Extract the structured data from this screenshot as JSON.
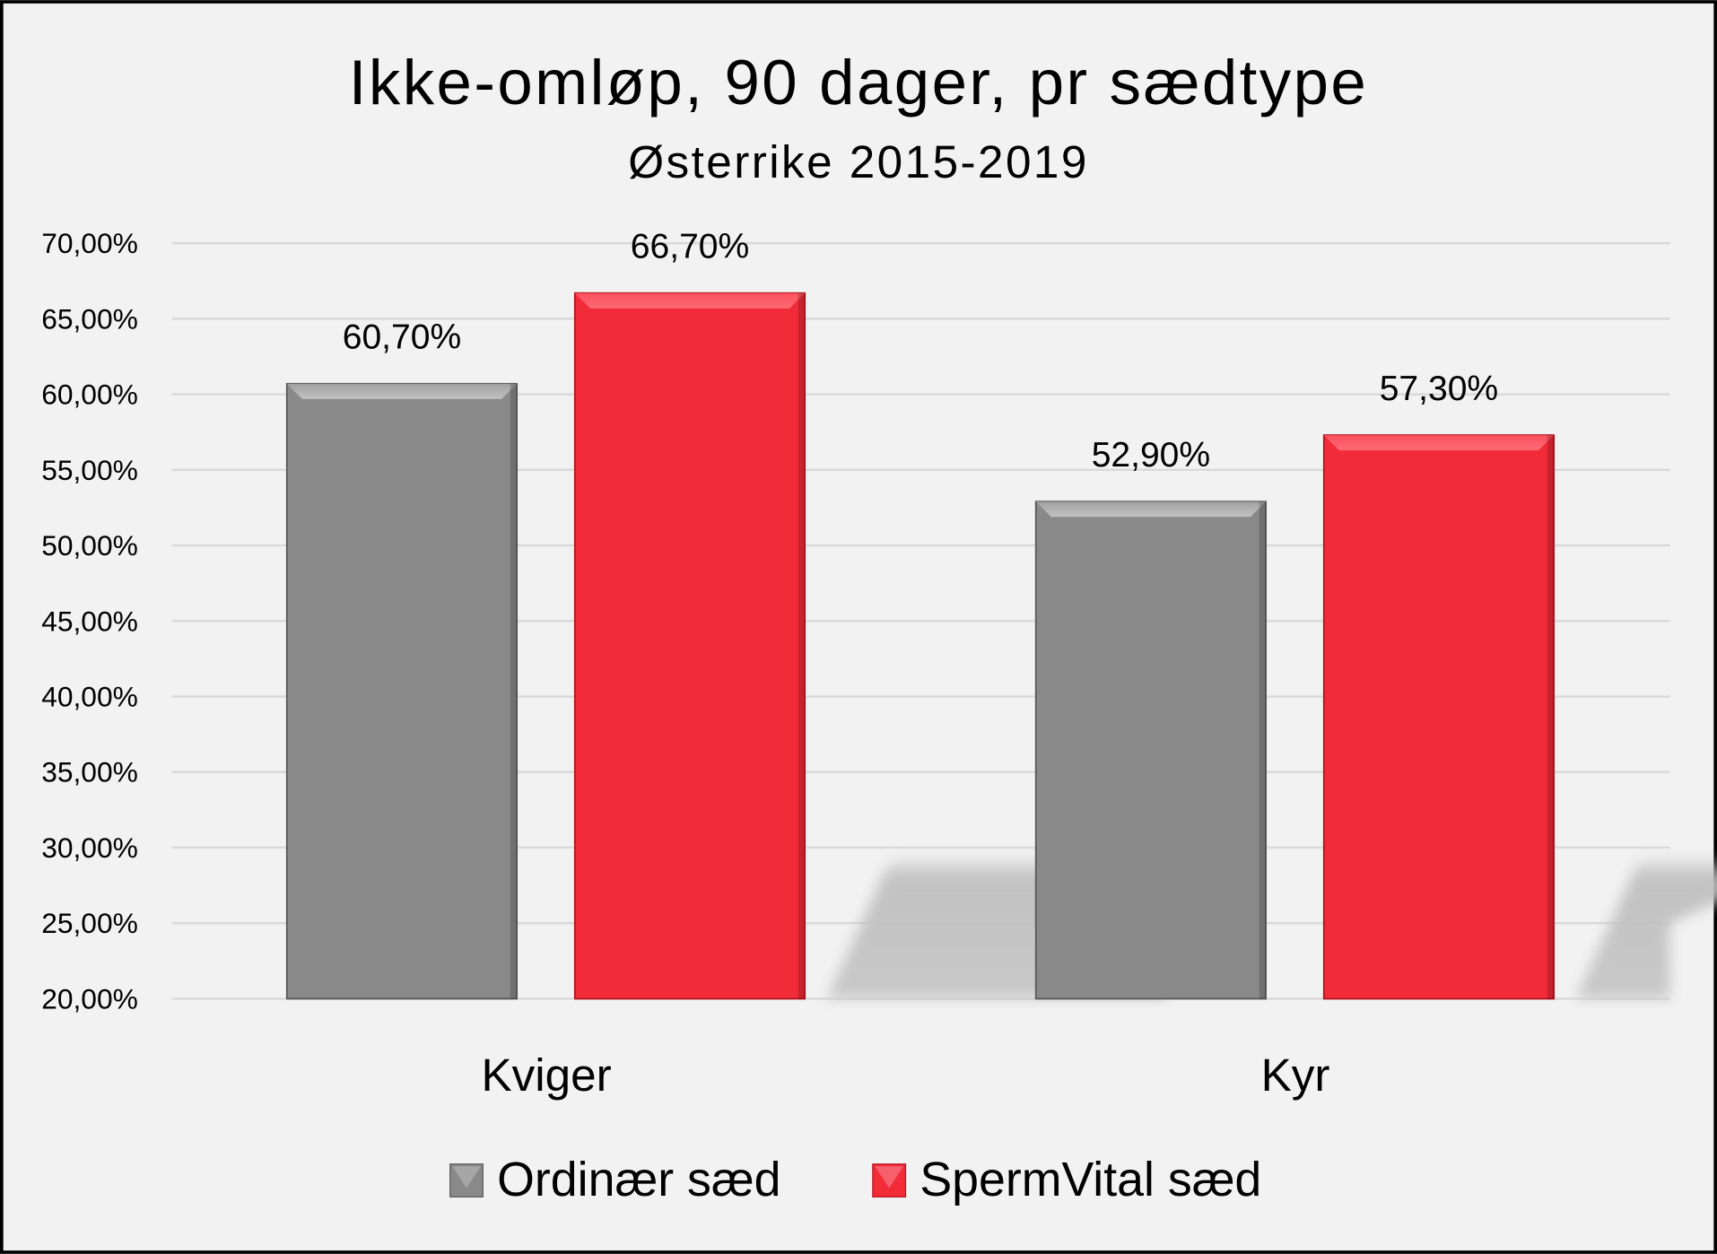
{
  "chart_data": {
    "type": "bar",
    "title": "Ikke-omløp, 90 dager, pr sædtype",
    "subtitle": "Østerrike 2015-2019",
    "categories": [
      "Kviger",
      "Kyr"
    ],
    "series": [
      {
        "name": "Ordinær sæd",
        "color": "#898989",
        "values": [
          60.7,
          52.9
        ],
        "labels": [
          "60,70%",
          "52,90%"
        ]
      },
      {
        "name": "SpermVital sæd",
        "color": "#f22b39",
        "values": [
          66.7,
          57.3
        ],
        "labels": [
          "66,70%",
          "57,30%"
        ]
      }
    ],
    "ylim": [
      20,
      70
    ],
    "yticks": [
      20,
      25,
      30,
      35,
      40,
      45,
      50,
      55,
      60,
      65,
      70
    ],
    "ytick_labels": [
      "20,00%",
      "25,00%",
      "30,00%",
      "35,00%",
      "40,00%",
      "45,00%",
      "50,00%",
      "55,00%",
      "60,00%",
      "65,00%",
      "70,00%"
    ],
    "xlabel": "",
    "ylabel": "",
    "grid": true,
    "legend": "bottom"
  }
}
